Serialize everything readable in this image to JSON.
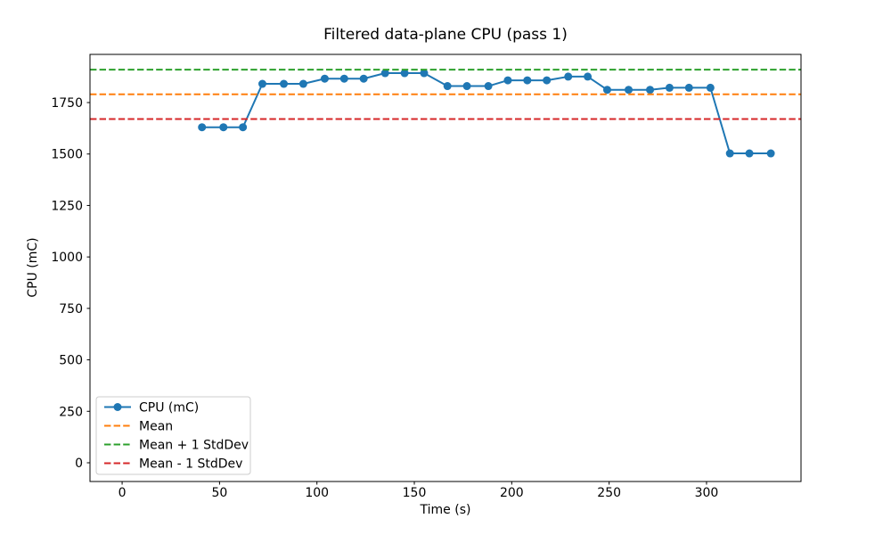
{
  "chart_data": {
    "type": "line",
    "title": "Filtered data-plane CPU (pass 1)",
    "xlabel": "Time (s)",
    "ylabel": "CPU (mC)",
    "xlim": [
      -16.5,
      348.5
    ],
    "ylim": [
      -91,
      1984
    ],
    "x_ticks": [
      0,
      50,
      100,
      150,
      200,
      250,
      300
    ],
    "y_ticks": [
      0,
      250,
      500,
      750,
      1000,
      1250,
      1500,
      1750
    ],
    "grid": false,
    "legend_position": "lower left",
    "stats": {
      "mean": 1790,
      "std": 120,
      "mean_plus_std": 1910,
      "mean_minus_std": 1670
    },
    "series": [
      {
        "name": "CPU (mC)",
        "type": "line+markers",
        "color": "#1f77b4",
        "x": [
          41,
          52,
          62,
          72,
          83,
          93,
          104,
          114,
          124,
          135,
          145,
          155,
          167,
          177,
          188,
          198,
          208,
          218,
          229,
          239,
          249,
          260,
          271,
          281,
          291,
          302,
          312,
          322,
          333
        ],
        "y": [
          1630,
          1630,
          1630,
          1841,
          1841,
          1841,
          1866,
          1866,
          1866,
          1893,
          1893,
          1893,
          1830,
          1830,
          1830,
          1858,
          1858,
          1858,
          1876,
          1876,
          1812,
          1812,
          1812,
          1822,
          1822,
          1822,
          1503,
          1503,
          1503
        ]
      },
      {
        "name": "Mean",
        "type": "hline",
        "color": "#ff7f0e",
        "y": 1790
      },
      {
        "name": "Mean + 1 StdDev",
        "type": "hline",
        "color": "#2ca02c",
        "y": 1910
      },
      {
        "name": "Mean - 1 StdDev",
        "type": "hline",
        "color": "#d62728",
        "y": 1670
      }
    ]
  }
}
